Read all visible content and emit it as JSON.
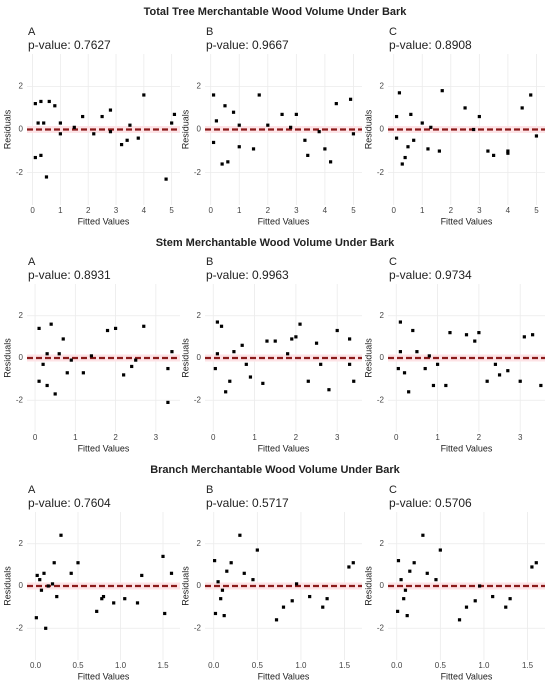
{
  "row_titles": [
    "Total Tree Merchantable Wood Volume Under Bark",
    "Stem Merchantable Wood Volume Under Bark",
    "Branch Merchantable Wood Volume Under Bark"
  ],
  "chart_data": [
    {
      "type": "scatter",
      "title": "A",
      "subtitle": "p-value: 0.7627",
      "x_label": "Fitted Values",
      "y_label": "Residuals",
      "color": "#000000",
      "grid": true,
      "hline": 0,
      "hline_color": "#8b1a1a",
      "x": [
        0.1,
        0.1,
        0.2,
        0.3,
        0.3,
        0.4,
        0.5,
        0.6,
        0.8,
        1.0,
        1.0,
        1.5,
        1.8,
        2.2,
        2.5,
        2.8,
        2.8,
        3.2,
        3.4,
        3.5,
        3.8,
        4.0,
        4.8,
        5.0,
        5.1
      ],
      "values": [
        1.2,
        -1.3,
        0.3,
        1.3,
        -1.2,
        0.3,
        -2.2,
        1.3,
        1.1,
        0.3,
        -0.2,
        0.1,
        0.6,
        -0.2,
        0.6,
        0.9,
        -0.1,
        -0.7,
        -0.5,
        0.2,
        -0.4,
        1.6,
        -2.3,
        0.3,
        0.7
      ],
      "xlim": [
        -0.2,
        5.3
      ],
      "ylim": [
        -3.5,
        3.5
      ],
      "xticks": [
        0,
        1,
        2,
        3,
        4,
        5
      ],
      "yticks": [
        -2,
        0,
        2
      ]
    },
    {
      "type": "scatter",
      "title": "B",
      "subtitle": "p-value: 0.9667",
      "x_label": "Fitted Values",
      "y_label": "Residuals",
      "color": "#000000",
      "grid": true,
      "hline": 0,
      "hline_color": "#8b1a1a",
      "x": [
        0.1,
        0.1,
        0.2,
        0.4,
        0.5,
        0.6,
        0.8,
        1.0,
        1.0,
        1.5,
        1.7,
        2.0,
        2.5,
        2.8,
        3.0,
        3.3,
        3.4,
        3.8,
        4.0,
        4.2,
        4.4,
        4.9,
        5.0
      ],
      "values": [
        -0.6,
        1.6,
        0.4,
        -1.6,
        1.1,
        -1.5,
        0.8,
        -0.8,
        0.2,
        -0.9,
        1.6,
        0.2,
        0.7,
        0.1,
        0.7,
        -0.5,
        -1.2,
        -0.1,
        -0.9,
        -1.5,
        1.2,
        1.4,
        -0.2
      ],
      "xlim": [
        -0.2,
        5.3
      ],
      "ylim": [
        -3.5,
        3.5
      ],
      "xticks": [
        0,
        1,
        2,
        3,
        4,
        5
      ],
      "yticks": [
        -2,
        0,
        2
      ]
    },
    {
      "type": "scatter",
      "title": "C",
      "subtitle": "p-value: 0.8908",
      "x_label": "Fitted Values",
      "y_label": "Residuals",
      "color": "#000000",
      "grid": true,
      "hline": 0,
      "hline_color": "#8b1a1a",
      "x": [
        0.1,
        0.1,
        0.2,
        0.3,
        0.4,
        0.5,
        0.6,
        0.7,
        1.0,
        1.2,
        1.3,
        1.6,
        1.7,
        2.5,
        2.8,
        3.0,
        3.3,
        3.5,
        4.0,
        4.0,
        4.5,
        4.8,
        5.0
      ],
      "values": [
        -0.4,
        0.6,
        1.7,
        -1.6,
        -1.3,
        -0.8,
        0.7,
        -0.5,
        0.3,
        -0.9,
        0.1,
        -1.0,
        1.8,
        1.0,
        0.0,
        0.6,
        -1.0,
        -1.2,
        -1.0,
        -1.1,
        1.0,
        1.6,
        -0.3
      ],
      "xlim": [
        -0.2,
        5.3
      ],
      "ylim": [
        -3.5,
        3.5
      ],
      "xticks": [
        0,
        1,
        2,
        3,
        4,
        5
      ],
      "yticks": [
        -2,
        0,
        2
      ]
    },
    {
      "type": "scatter",
      "title": "A",
      "subtitle": "p-value: 0.8931",
      "x_label": "Fitted Values",
      "y_label": "Residuals",
      "color": "#000000",
      "grid": true,
      "hline": 0,
      "hline_color": "#8b1a1a",
      "x": [
        0.1,
        0.1,
        0.2,
        0.3,
        0.3,
        0.4,
        0.5,
        0.6,
        0.7,
        0.8,
        0.9,
        1.2,
        1.4,
        1.8,
        2.0,
        2.2,
        2.4,
        2.5,
        2.7,
        3.3,
        3.3,
        3.4
      ],
      "values": [
        -1.1,
        1.4,
        -0.3,
        0.2,
        -1.3,
        1.6,
        -1.7,
        0.2,
        0.9,
        -0.7,
        -0.1,
        -0.7,
        0.1,
        1.3,
        1.4,
        -0.8,
        -0.4,
        -0.1,
        1.5,
        -2.1,
        -0.5,
        0.3
      ],
      "xlim": [
        -0.2,
        3.6
      ],
      "ylim": [
        -3.5,
        3.5
      ],
      "xticks": [
        0,
        1,
        2,
        3
      ],
      "yticks": [
        -2,
        0,
        2
      ]
    },
    {
      "type": "scatter",
      "title": "B",
      "subtitle": "p-value: 0.9963",
      "x_label": "Fitted Values",
      "y_label": "Residuals",
      "color": "#000000",
      "grid": true,
      "hline": 0,
      "hline_color": "#8b1a1a",
      "x": [
        0.05,
        0.1,
        0.1,
        0.2,
        0.3,
        0.4,
        0.5,
        0.7,
        0.8,
        0.9,
        1.2,
        1.3,
        1.5,
        1.8,
        1.9,
        2.0,
        2.1,
        2.3,
        2.5,
        2.6,
        2.8,
        3.0,
        3.3,
        3.3,
        3.4
      ],
      "values": [
        -0.5,
        0.2,
        1.7,
        1.5,
        -1.6,
        -1.1,
        0.3,
        0.6,
        -0.3,
        -0.9,
        -1.2,
        0.8,
        0.8,
        0.2,
        0.9,
        1.0,
        1.6,
        -1.1,
        0.7,
        -0.3,
        -1.5,
        1.3,
        -0.3,
        0.9,
        -1.1
      ],
      "xlim": [
        -0.2,
        3.6
      ],
      "ylim": [
        -3.5,
        3.5
      ],
      "xticks": [
        0,
        1,
        2,
        3
      ],
      "yticks": [
        -2,
        0,
        2
      ]
    },
    {
      "type": "scatter",
      "title": "C",
      "subtitle": "p-value: 0.9734",
      "x_label": "Fitted Values",
      "y_label": "Residuals",
      "color": "#000000",
      "grid": true,
      "hline": 0,
      "hline_color": "#8b1a1a",
      "x": [
        0.05,
        0.1,
        0.1,
        0.2,
        0.3,
        0.4,
        0.5,
        0.7,
        0.8,
        0.9,
        1.0,
        1.2,
        1.3,
        1.7,
        1.9,
        2.0,
        2.2,
        2.4,
        2.5,
        2.7,
        3.0,
        3.1,
        3.3,
        3.5
      ],
      "values": [
        -0.5,
        1.7,
        0.3,
        -0.7,
        -1.6,
        1.3,
        0.3,
        -0.5,
        0.1,
        -1.3,
        -0.3,
        -1.3,
        1.2,
        1.1,
        0.8,
        1.2,
        -1.1,
        -0.3,
        -0.8,
        -0.6,
        -1.1,
        1.0,
        1.1,
        -1.3
      ],
      "xlim": [
        -0.2,
        3.6
      ],
      "ylim": [
        -3.5,
        3.5
      ],
      "xticks": [
        0,
        1,
        2,
        3
      ],
      "yticks": [
        -2,
        0,
        2
      ]
    },
    {
      "type": "scatter",
      "title": "A",
      "subtitle": "p-value: 0.7604",
      "x_label": "Fitted Values",
      "y_label": "Residuals",
      "color": "#000000",
      "grid": true,
      "hline": 0,
      "hline_color": "#8b1a1a",
      "x": [
        0.01,
        0.02,
        0.05,
        0.07,
        0.1,
        0.12,
        0.15,
        0.2,
        0.22,
        0.25,
        0.3,
        0.42,
        0.5,
        0.72,
        0.78,
        0.8,
        0.92,
        1.05,
        1.2,
        1.25,
        1.5,
        1.52,
        1.6
      ],
      "values": [
        -1.5,
        0.5,
        0.3,
        -0.2,
        0.6,
        -2.0,
        0.0,
        0.1,
        1.1,
        -0.5,
        2.4,
        0.6,
        1.1,
        -1.2,
        -0.6,
        -0.5,
        -0.8,
        -0.6,
        -0.8,
        0.5,
        1.4,
        -1.3,
        0.6
      ],
      "xlim": [
        -0.1,
        1.7
      ],
      "ylim": [
        -3.5,
        3.5
      ],
      "xticks": [
        {
          "value": 0,
          "label": "0.0"
        },
        0.5,
        {
          "value": 1,
          "label": "1.0"
        },
        1.5
      ],
      "yticks": [
        -2,
        0,
        2
      ]
    },
    {
      "type": "scatter",
      "title": "B",
      "subtitle": "p-value: 0.5717",
      "x_label": "Fitted Values",
      "y_label": "Residuals",
      "color": "#000000",
      "grid": true,
      "hline": 0,
      "hline_color": "#8b1a1a",
      "x": [
        0.01,
        0.02,
        0.05,
        0.08,
        0.1,
        0.12,
        0.15,
        0.2,
        0.3,
        0.35,
        0.45,
        0.5,
        0.72,
        0.8,
        0.9,
        0.95,
        1.1,
        1.25,
        1.3,
        1.55,
        1.6
      ],
      "values": [
        1.2,
        -1.3,
        0.2,
        -0.6,
        -0.2,
        -1.4,
        0.7,
        1.1,
        2.4,
        0.6,
        0.3,
        1.7,
        -1.6,
        -1.0,
        -0.7,
        0.1,
        -0.5,
        -1.0,
        -0.6,
        0.9,
        1.1
      ],
      "xlim": [
        -0.1,
        1.7
      ],
      "ylim": [
        -3.5,
        3.5
      ],
      "xticks": [
        {
          "value": 0,
          "label": "0.0"
        },
        0.5,
        {
          "value": 1,
          "label": "1.0"
        },
        1.5
      ],
      "yticks": [
        -2,
        0,
        2
      ]
    },
    {
      "type": "scatter",
      "title": "C",
      "subtitle": "p-value: 0.5706",
      "x_label": "Fitted Values",
      "y_label": "Residuals",
      "color": "#000000",
      "grid": true,
      "hline": 0,
      "hline_color": "#8b1a1a",
      "x": [
        0.01,
        0.02,
        0.05,
        0.08,
        0.1,
        0.12,
        0.15,
        0.2,
        0.3,
        0.35,
        0.45,
        0.5,
        0.72,
        0.8,
        0.9,
        0.95,
        1.1,
        1.25,
        1.3,
        1.55,
        1.6
      ],
      "values": [
        -1.2,
        1.2,
        0.3,
        -0.6,
        -0.2,
        -1.4,
        0.7,
        1.1,
        2.4,
        0.6,
        0.3,
        1.7,
        -1.6,
        -1.0,
        -0.7,
        0.0,
        -0.5,
        -1.0,
        -0.6,
        0.9,
        1.1
      ],
      "xlim": [
        -0.1,
        1.7
      ],
      "ylim": [
        -3.5,
        3.5
      ],
      "xticks": [
        {
          "value": 0,
          "label": "0.0"
        },
        0.5,
        {
          "value": 1,
          "label": "1.0"
        },
        1.5
      ],
      "yticks": [
        -2,
        0,
        2
      ]
    }
  ]
}
